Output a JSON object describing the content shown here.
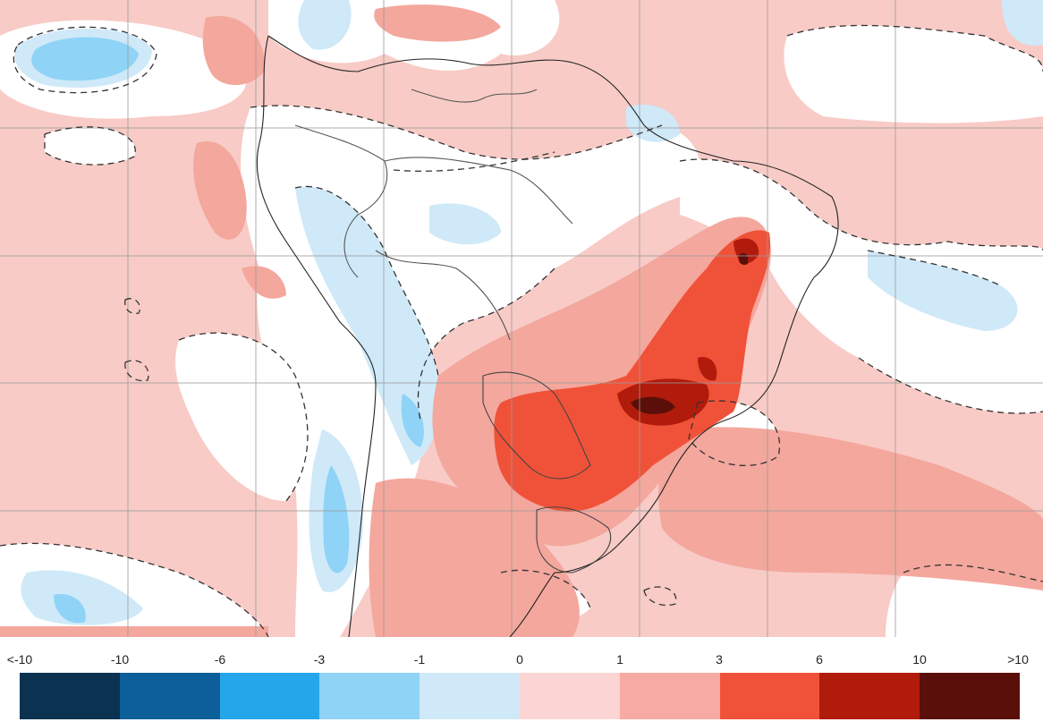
{
  "map": {
    "type": "anomaly map",
    "region": "South America",
    "contours": "dashed",
    "grid": true
  },
  "legend": {
    "tick_labels": [
      "<-10",
      "-10",
      "-6",
      "-3",
      "-1",
      "0",
      "1",
      "3",
      "6",
      "10",
      ">10"
    ],
    "colors": [
      "#0c3251",
      "#0d5f9a",
      "#26a6ea",
      "#8fd3f6",
      "#cfe9f8",
      "#fad5d3",
      "#f7aaa3",
      "#f05239",
      "#b11b0c",
      "#5a0f0a"
    ]
  }
}
